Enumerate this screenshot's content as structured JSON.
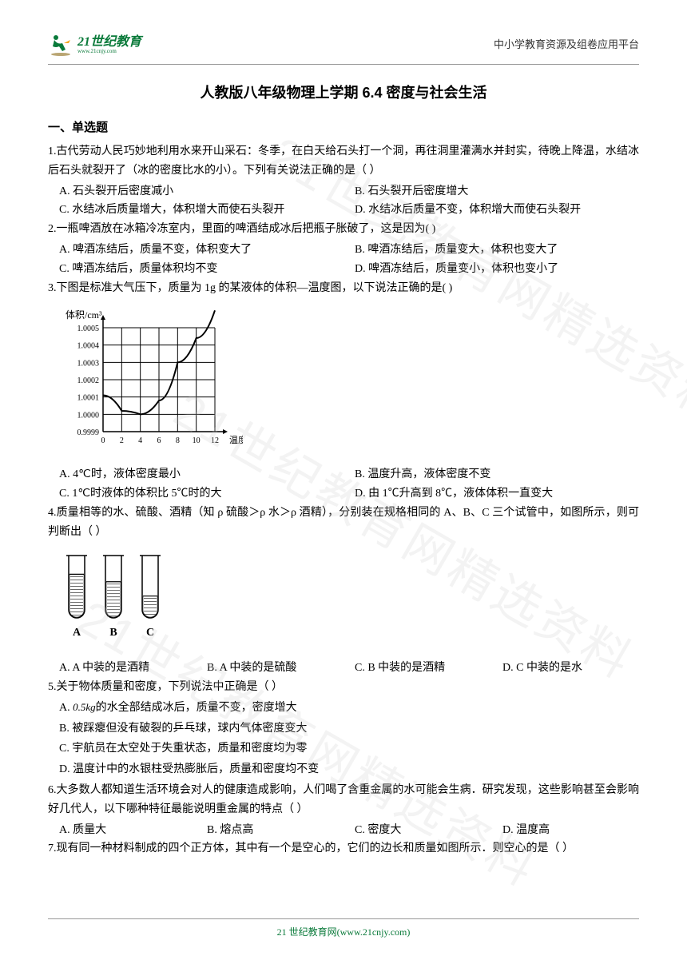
{
  "header": {
    "logo_main": "21世纪教育",
    "logo_sub": "www.21cnjy.com",
    "right_text": "中小学教育资源及组卷应用平台"
  },
  "title": "人教版八年级物理上学期 6.4 密度与社会生活",
  "section1": "一、单选题",
  "q1": {
    "text": "1.古代劳动人民巧妙地利用水来开山采石：冬季，在白天给石头打一个洞，再往洞里灌满水并封实，待晚上降温，水结冰后石头就裂开了（冰的密度比水的小）。下列有关说法正确的是（   ）",
    "a": "A. 石头裂开后密度减小",
    "b": "B. 石头裂开后密度增大",
    "c": "C. 水结冰后质量增大，体积增大而使石头裂开",
    "d": "D. 水结冰后质量不变，体积增大而使石头裂开"
  },
  "q2": {
    "text": "2.一瓶啤酒放在冰箱冷冻室内，里面的啤酒结成冰后把瓶子胀破了，这是因为(    )",
    "a": "A. 啤酒冻结后，质量不变，体积变大了",
    "b": "B. 啤酒冻结后，质量变大，体积也变大了",
    "c": "C. 啤酒冻结后，质量体积均不变",
    "d": "D. 啤酒冻结后，质量变小，体积也变小了"
  },
  "q3": {
    "text": "3.下图是标准大气压下，质量为 1g 的某液体的体积—温度图，以下说法正确的是(    )",
    "a": "A. 4℃时，液体密度最小",
    "b": "B. 温度升高，液体密度不变",
    "c": "C. 1℃时液体的体积比 5℃时的大",
    "d": "D. 由 1℃升高到 8℃，液体体积一直变大"
  },
  "chart": {
    "ylabel": "体积/cm³",
    "xlabel": "温度/℃",
    "yticks": [
      "0.9999",
      "1.0000",
      "1.0001",
      "1.0002",
      "1.0003",
      "1.0004",
      "1.0005"
    ],
    "xticks": [
      "0",
      "2",
      "4",
      "6",
      "8",
      "10",
      "12"
    ],
    "curve_points": [
      [
        0,
        1.00011
      ],
      [
        2,
        1.00002
      ],
      [
        4,
        1.0
      ],
      [
        6,
        1.00008
      ],
      [
        8,
        1.0003
      ],
      [
        10,
        1.00044
      ],
      [
        12,
        1.0006
      ]
    ],
    "grid_color": "#000000",
    "line_color": "#000000",
    "bg_color": "#ffffff"
  },
  "q4": {
    "text": "4.质量相等的水、硫酸、酒精（知 ρ 硫酸＞ρ 水＞ρ 酒精），分别装在规格相同的 A、B、C 三个试管中，如图所示，则可判断出（   ）",
    "a": "A. A 中装的是酒精",
    "b": "B. A 中装的是硫酸",
    "c": "C. B 中装的是酒精",
    "d": "D. C 中装的是水"
  },
  "tubes": {
    "labels": [
      "A",
      "B",
      "C"
    ],
    "fill_heights": [
      0.7,
      0.58,
      0.35
    ]
  },
  "q5": {
    "text": "5.关于物体质量和密度，下列说法中正确是（    ）",
    "a_prefix": "A. ",
    "a_formula": "0.5kg",
    "a_suffix": "的水全部结成冰后，质量不变，密度增大",
    "b": "B. 被踩瘪但没有破裂的乒乓球，球内气体密度变大",
    "c": "C. 宇航员在太空处于失重状态，质量和密度均为零",
    "d": "D. 温度计中的水银柱受热膨胀后，质量和密度均不变"
  },
  "q6": {
    "text": "6.大多数人都知道生活环境会对人的健康造成影响，人们喝了含重金属的水可能会生病．研究发现，这些影响甚至会影响好几代人，以下哪种特征最能说明重金属的特点（   ）",
    "a": "A. 质量大",
    "b": "B. 熔点高",
    "c": "C. 密度大",
    "d": "D. 温度高"
  },
  "q7": {
    "text": "7.现有同一种材料制成的四个正方体，其中有一个是空心的，它们的边长和质量如图所示．则空心的是（    ）"
  },
  "footer": "21 世纪教育网(www.21cnjy.com)",
  "watermark": "精选资料",
  "watermark2": "21世纪教育网精选资料"
}
